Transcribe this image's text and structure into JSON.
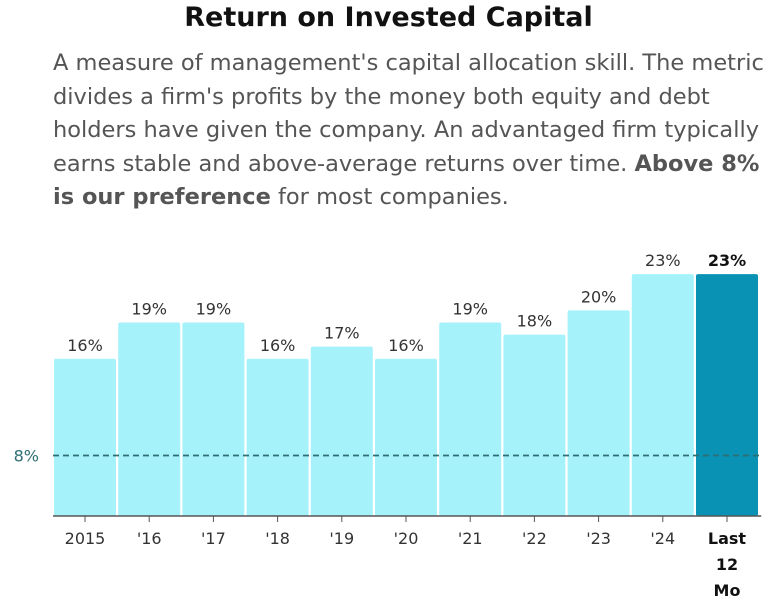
{
  "header": {
    "title": "Return on Invested Capital",
    "desc_text": "A measure of management's capital allocation skill. The metric divides a firm's profits by the money both equity and debt holders have given the company. An advantaged firm typically earns stable and above-average returns over time. ",
    "desc_bold": "Above 8% is our preference",
    "desc_tail": " for most companies."
  },
  "chart_data": {
    "type": "bar",
    "categories": [
      "2015",
      "'16",
      "'17",
      "'18",
      "'19",
      "'20",
      "'21",
      "'22",
      "'23",
      "'24",
      "Last 12 Mo"
    ],
    "values": [
      16,
      19,
      19,
      16,
      17,
      16,
      19,
      18,
      20,
      23,
      23
    ],
    "value_labels": [
      "16%",
      "19%",
      "19%",
      "16%",
      "17%",
      "16%",
      "19%",
      "18%",
      "20%",
      "23%",
      "23%"
    ],
    "highlight_index": 10,
    "reference_line": {
      "value": 8,
      "label": "8%"
    },
    "ylim": [
      3,
      24
    ],
    "colors": {
      "bar": "#a5f2fb",
      "highlight": "#0a92b4",
      "reference": "#2f6f73"
    }
  }
}
